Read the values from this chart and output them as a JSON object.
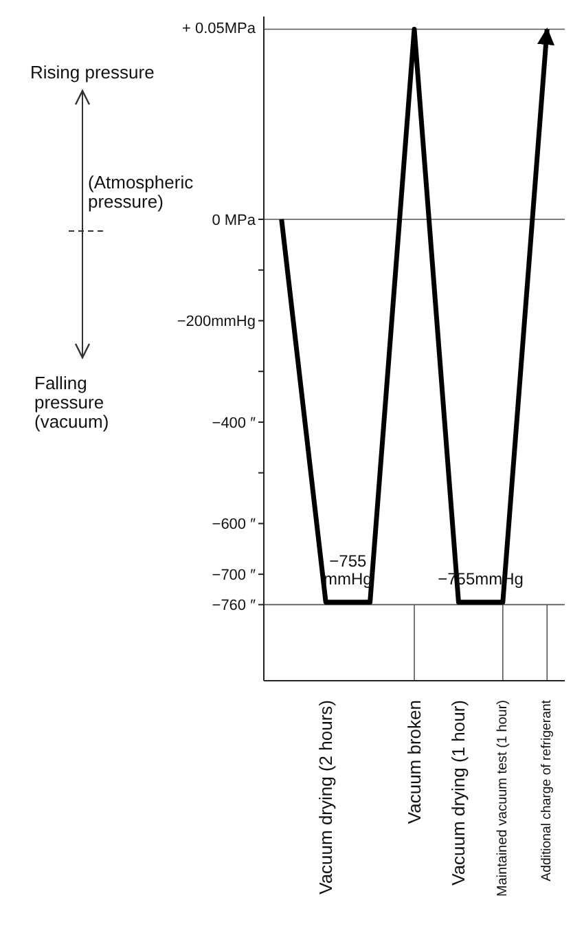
{
  "chart_data": {
    "type": "line",
    "categories": [
      null,
      "Vacuum drying (2 hours)",
      null,
      "Vacuum broken",
      "Vacuum drying (1 hour)",
      "Maintained vacuum test (1 hour)",
      "Additional charge of refrigerant"
    ],
    "series": [
      {
        "color": "#000000",
        "values": [
          0,
          -755,
          -755,
          375,
          -755,
          -755,
          375
        ]
      }
    ],
    "ylim": [
      -910,
      400
    ],
    "yticks": [
      {
        "value": 0,
        "label": "0 MPa"
      },
      {
        "value": -100,
        "label": null
      },
      {
        "value": -200,
        "label": "−200mmHg"
      },
      {
        "value": -300,
        "label": null
      },
      {
        "value": -400,
        "label": "−400  ″"
      },
      {
        "value": -500,
        "label": null
      },
      {
        "value": -600,
        "label": "−600  ″"
      },
      {
        "value": -700,
        "label": "−700  ″"
      },
      {
        "value": -760,
        "label": "−760  ″"
      }
    ],
    "ref_lines": [
      {
        "axis": "y",
        "value": 375,
        "label": "+ 0.05MPa"
      },
      {
        "axis": "y",
        "value": 0
      },
      {
        "axis": "y",
        "value": -760
      },
      {
        "axis": "x",
        "value": "Vacuum broken"
      },
      {
        "axis": "x",
        "value": "Maintained vacuum test (1 hour)"
      },
      {
        "axis": "x",
        "value": "Additional charge of refrigerant"
      }
    ],
    "annotations": [
      "Rising pressure",
      "(Atmospheric pressure)",
      "Falling pressure (vacuum)",
      {
        "text": "−755 mmHg",
        "x": "Vacuum drying (2 hours)",
        "y": -755
      },
      {
        "text": "−755mmHg",
        "x": "Vacuum drying (1 hour)",
        "y": -755
      }
    ]
  }
}
